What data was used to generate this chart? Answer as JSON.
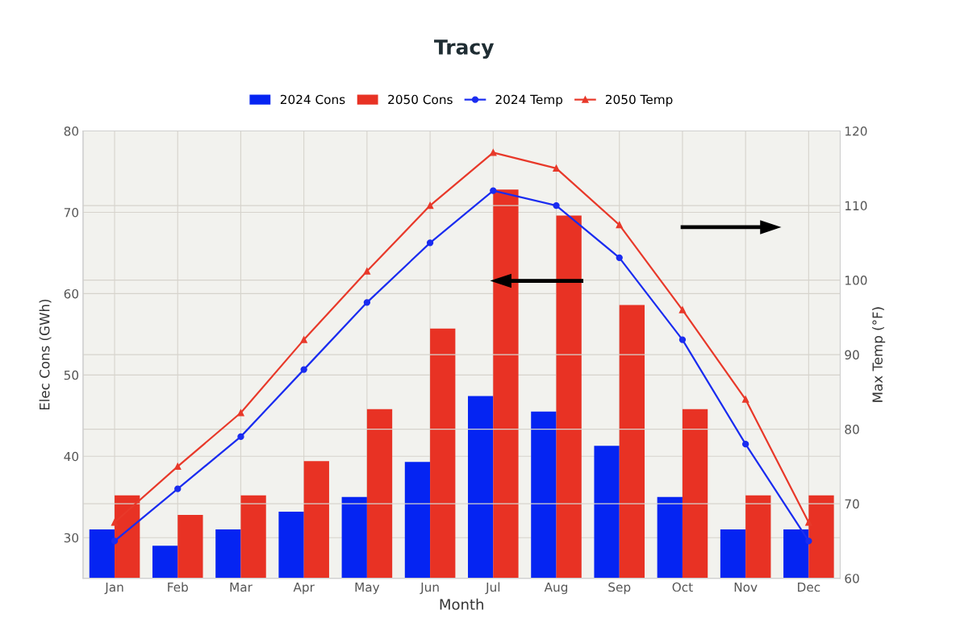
{
  "chart_data": {
    "type": "bar",
    "title": "Tracy",
    "xlabel": "Month",
    "ylabel": "Elec Cons (GWh)",
    "y2label": "Max Temp (°F)",
    "categories": [
      "Jan",
      "Feb",
      "Mar",
      "Apr",
      "May",
      "Jun",
      "Jul",
      "Aug",
      "Sep",
      "Oct",
      "Nov",
      "Dec"
    ],
    "series": [
      {
        "name": "2024 Cons",
        "color": "#0524f2",
        "values": [
          31,
          29,
          31,
          33.2,
          35,
          39.3,
          47.4,
          45.5,
          41.3,
          35,
          31,
          31
        ]
      },
      {
        "name": "2050 Cons",
        "color": "#e83224",
        "values": [
          35.2,
          32.8,
          35.2,
          39.4,
          45.8,
          55.7,
          72.8,
          69.6,
          58.6,
          45.8,
          35.2,
          35.2
        ]
      },
      {
        "name": "2024 Temp",
        "type": "line",
        "axis": "y2",
        "marker": "circle",
        "color": "#1a2cf0",
        "values": [
          65,
          72,
          79,
          88,
          97,
          105,
          112,
          110,
          103,
          92,
          78,
          65
        ]
      },
      {
        "name": "2050 Temp",
        "type": "line",
        "axis": "y2",
        "marker": "triangle",
        "color": "#e8392a",
        "values": [
          67.5,
          75,
          82.2,
          92,
          101.2,
          110,
          117.1,
          115,
          107.4,
          96,
          84,
          67.5
        ]
      }
    ],
    "ylim": [
      25,
      80
    ],
    "yticks": [
      30,
      40,
      50,
      60,
      70,
      80
    ],
    "y2lim": [
      60,
      120
    ],
    "y2ticks": [
      60,
      70,
      80,
      90,
      100,
      110,
      120
    ],
    "grid": true,
    "legend": "top",
    "line_style": "solid"
  }
}
